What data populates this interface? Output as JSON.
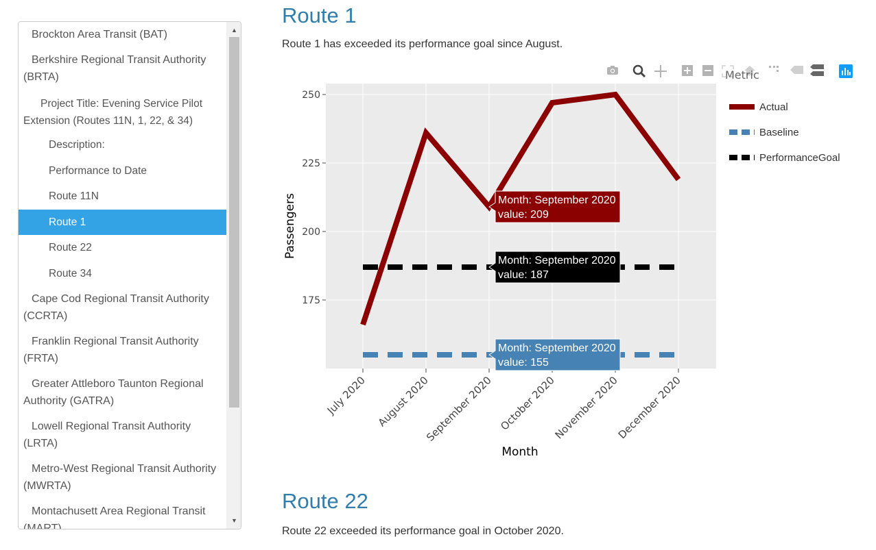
{
  "toc": {
    "items": [
      {
        "label": "Brockton Area Transit (BAT)",
        "level": 1,
        "active": false
      },
      {
        "label": "Berkshire Regional Transit Authority (BRTA)",
        "level": 1,
        "active": false
      },
      {
        "label": "Project Title: Evening Service Pilot Extension (Routes 11N, 1, 22, & 34)",
        "level": 2,
        "active": false
      },
      {
        "label": "Description:",
        "level": 3,
        "active": false
      },
      {
        "label": "Performance to Date",
        "level": 3,
        "active": false
      },
      {
        "label": "Route 11N",
        "level": 3,
        "active": false
      },
      {
        "label": "Route 1",
        "level": 3,
        "active": true
      },
      {
        "label": "Route 22",
        "level": 3,
        "active": false
      },
      {
        "label": "Route 34",
        "level": 3,
        "active": false
      },
      {
        "label": "Cape Cod Regional Transit Authority (CCRTA)",
        "level": 1,
        "active": false
      },
      {
        "label": "Franklin Regional Transit Authority (FRTA)",
        "level": 1,
        "active": false
      },
      {
        "label": "Greater Attleboro Taunton Regional Authority (GATRA)",
        "level": 1,
        "active": false
      },
      {
        "label": "Lowell Regional Transit Authority (LRTA)",
        "level": 1,
        "active": false
      },
      {
        "label": "Metro-West Regional Transit Authority (MWRTA)",
        "level": 1,
        "active": false
      },
      {
        "label": "Montachusett Area Regional Transit (MART)",
        "level": 1,
        "active": false
      }
    ],
    "accent_color": "#33a3e6"
  },
  "main": {
    "route1_heading": "Route 1",
    "route1_text": "Route 1 has exceeded its performance goal since August.",
    "route22_heading": "Route 22",
    "route22_text": "Route 22 exceeded its performance goal in October 2020."
  },
  "modebar": {
    "icons": [
      "camera-icon",
      "zoom-icon",
      "pan-icon",
      "zoom-in-icon",
      "zoom-out-icon",
      "autoscale-icon",
      "reset-axes-icon",
      "spike-lines-icon",
      "hover-closest-icon",
      "hover-compare-icon",
      "plotly-logo-icon"
    ]
  },
  "chart_data": {
    "type": "line",
    "xlabel": "Month",
    "ylabel": "Passengers",
    "legend_title": "Metric",
    "legend_position": "right",
    "categories": [
      "July 2020",
      "August 2020",
      "September 2020",
      "October 2020",
      "November 2020",
      "December 2020"
    ],
    "yticks": [
      175,
      200,
      225,
      250
    ],
    "ylim": [
      150,
      254
    ],
    "grid": true,
    "series": [
      {
        "name": "Actual",
        "values": [
          166,
          236,
          209,
          247,
          250,
          219
        ],
        "color": "#8b0000",
        "dash": "solid"
      },
      {
        "name": "Baseline",
        "values": [
          155,
          155,
          155,
          155,
          155,
          155
        ],
        "color": "#4682b4",
        "dash": "dash"
      },
      {
        "name": "PerformanceGoal",
        "values": [
          187,
          187,
          187,
          187,
          187,
          187
        ],
        "color": "#000000",
        "dash": "dash"
      }
    ],
    "hover": {
      "category": "September 2020",
      "labels": [
        {
          "line1": "Month: September 2020",
          "line2": "value: 209",
          "series": "Actual"
        },
        {
          "line1": "Month: September 2020",
          "line2": "value: 187",
          "series": "PerformanceGoal"
        },
        {
          "line1": "Month: September 2020",
          "line2": "value: 155",
          "series": "Baseline"
        }
      ]
    }
  }
}
